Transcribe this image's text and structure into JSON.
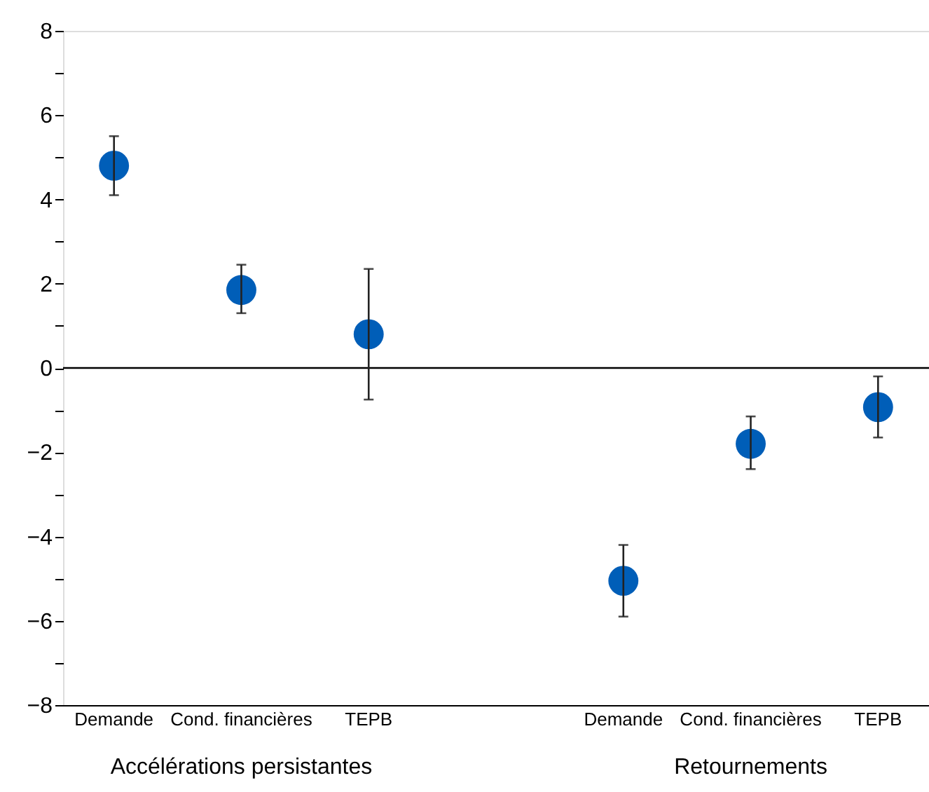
{
  "chart_data": {
    "type": "scatter",
    "categories": [
      "Demande",
      "Cond. financières",
      "TEPB",
      null,
      "Demande",
      "Cond. financières",
      "TEPB"
    ],
    "series": [
      {
        "color": "#005eb8",
        "values": [
          4.8,
          1.85,
          0.8,
          null,
          -5.05,
          -1.8,
          -0.93
        ],
        "errors": [
          [
            4.1,
            5.5
          ],
          [
            1.3,
            2.45
          ],
          [
            -0.75,
            2.35
          ],
          null,
          [
            -5.9,
            -4.2
          ],
          [
            -2.4,
            -1.15
          ],
          [
            -1.65,
            -0.2
          ]
        ]
      }
    ],
    "ylim": [
      -8,
      8
    ],
    "yticks": [
      {
        "value": -8,
        "label": "−8"
      },
      {
        "value": -7,
        "label": null
      },
      {
        "value": -6,
        "label": "−6"
      },
      {
        "value": -5,
        "label": null
      },
      {
        "value": -4,
        "label": "−4"
      },
      {
        "value": -3,
        "label": null
      },
      {
        "value": -2,
        "label": "−2"
      },
      {
        "value": -1,
        "label": null
      },
      0,
      {
        "value": 1,
        "label": null
      },
      2,
      {
        "value": 3,
        "label": null
      },
      4,
      {
        "value": 5,
        "label": null
      },
      6,
      {
        "value": 7,
        "label": null
      },
      8
    ],
    "ref_lines": [
      {
        "axis": "y",
        "value": 0,
        "color": "#000000"
      }
    ],
    "annotations": [
      "Accélérations persistantes",
      "Retournements"
    ],
    "marker": "circle",
    "grid": false
  }
}
